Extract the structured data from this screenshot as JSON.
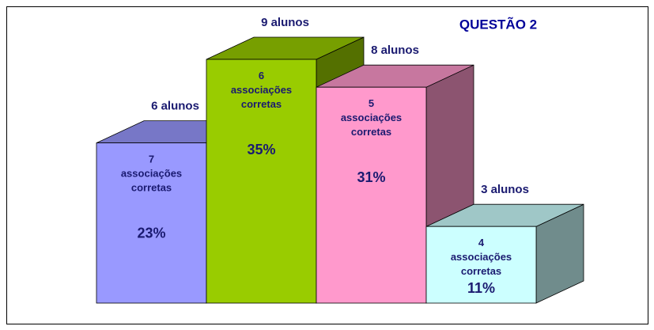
{
  "chart_data": {
    "type": "bar3d",
    "title": "QUESTÃO 2",
    "categories": [
      "7 associações corretas",
      "6 associações corretas",
      "5 associações corretas",
      "4 associações corretas"
    ],
    "values": [
      23,
      35,
      31,
      11
    ],
    "value_labels": [
      "23%",
      "35%",
      "31%",
      "11%"
    ],
    "annotations": [
      "6 alunos",
      "9 alunos",
      "8 alunos",
      "3 alunos"
    ],
    "colors": [
      "#9999ff",
      "#99cc00",
      "#ff99cc",
      "#ccffff"
    ]
  }
}
